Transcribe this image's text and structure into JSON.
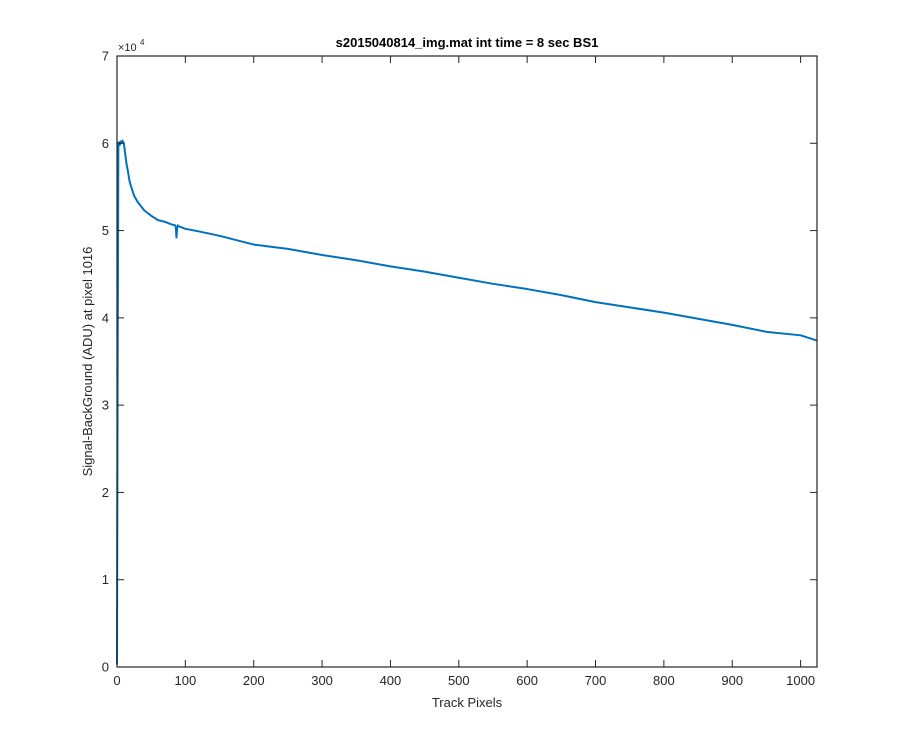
{
  "chart_data": {
    "type": "line",
    "title": "s2015040814_img.mat int time = 8 sec   BS1",
    "xlabel": "Track Pixels",
    "ylabel": "Signal-BackGround (ADU) at pixel 1016",
    "xlim": [
      0,
      1024
    ],
    "ylim": [
      0,
      70000
    ],
    "y_multiplier_label": "×10",
    "y_multiplier_exponent": "4",
    "x_ticks": [
      0,
      100,
      200,
      300,
      400,
      500,
      600,
      700,
      800,
      900,
      1000
    ],
    "x_tick_labels": [
      "0",
      "100",
      "200",
      "300",
      "400",
      "500",
      "600",
      "700",
      "800",
      "900",
      "1000"
    ],
    "y_ticks": [
      0,
      10000,
      20000,
      30000,
      40000,
      50000,
      60000,
      70000
    ],
    "y_tick_labels": [
      "0",
      "1",
      "2",
      "3",
      "4",
      "5",
      "6",
      "7"
    ],
    "grid": false,
    "series": [
      {
        "color": "#0072BD",
        "x": [
          0,
          1,
          2,
          3,
          4,
          5,
          6,
          8,
          10,
          12,
          14,
          16,
          18,
          20,
          25,
          30,
          40,
          50,
          60,
          70,
          80,
          85,
          86,
          87,
          88,
          89,
          90,
          100,
          120,
          150,
          200,
          250,
          300,
          350,
          400,
          450,
          500,
          550,
          600,
          650,
          700,
          750,
          800,
          850,
          900,
          950,
          1000,
          1024
        ],
        "y": [
          300,
          35000,
          60000,
          60100,
          59800,
          60200,
          60000,
          60300,
          60000,
          58800,
          57600,
          56800,
          55800,
          55200,
          54000,
          53300,
          52300,
          51700,
          51200,
          51000,
          50700,
          50600,
          50400,
          49200,
          50300,
          50600,
          50500,
          50200,
          49900,
          49400,
          48400,
          47900,
          47200,
          46600,
          45900,
          45300,
          44600,
          43900,
          43300,
          42600,
          41800,
          41200,
          40600,
          39900,
          39200,
          38400,
          38000,
          37400
        ]
      }
    ]
  }
}
